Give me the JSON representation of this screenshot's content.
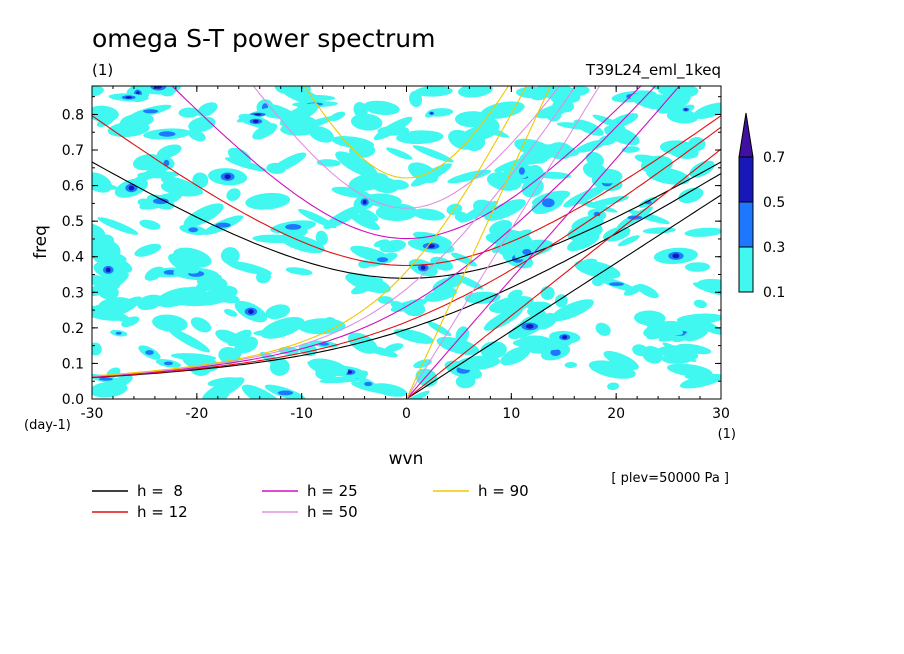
{
  "chart_data": {
    "type": "heatmap",
    "title": "omega S-T power spectrum",
    "subtitle_left": "(1)",
    "subtitle_right": "T39L24_eml_1keq",
    "xlabel": "wvn",
    "ylabel": "freq",
    "x_unit": "(1)",
    "y_unit": "(day-1)",
    "xlim": [
      -30,
      30
    ],
    "ylim": [
      0,
      0.88
    ],
    "x_ticks": [
      -30,
      -20,
      -10,
      0,
      10,
      20,
      30
    ],
    "x_tick_labels": [
      "-30",
      "-20",
      "-10",
      "0",
      "10",
      "20",
      "30"
    ],
    "y_ticks": [
      0,
      0.1,
      0.2,
      0.3,
      0.4,
      0.5,
      0.6,
      0.7,
      0.8
    ],
    "y_tick_labels": [
      "0.0",
      "0.1",
      "0.2",
      "0.3",
      "0.4",
      "0.5",
      "0.6",
      "0.7",
      "0.8"
    ],
    "annotation": "[ plev=50000 Pa ]",
    "colorbar": {
      "levels": [
        0.1,
        0.3,
        0.5,
        0.7
      ],
      "labels": [
        "0.1",
        "0.3",
        "0.5",
        "0.7"
      ],
      "colors": [
        "#40f8f0",
        "#1e78ff",
        "#1818b8",
        "#4010a0"
      ],
      "extend": "max"
    },
    "dispersion_curves": [
      {
        "name": "h =  8",
        "h": 8,
        "color": "#000000",
        "types": [
          "kelvin",
          "mrg",
          "ig1"
        ]
      },
      {
        "name": "h = 12",
        "h": 12,
        "color": "#e01010",
        "types": [
          "kelvin",
          "mrg",
          "ig1"
        ]
      },
      {
        "name": "h = 25",
        "h": 25,
        "color": "#d010c0",
        "types": [
          "kelvin",
          "mrg",
          "ig1"
        ]
      },
      {
        "name": "h = 50",
        "h": 50,
        "color": "#e090e0",
        "types": [
          "kelvin",
          "mrg",
          "ig1"
        ]
      },
      {
        "name": "h = 90",
        "h": 90,
        "color": "#f0c800",
        "types": [
          "kelvin",
          "mrg",
          "ig1"
        ]
      }
    ]
  }
}
